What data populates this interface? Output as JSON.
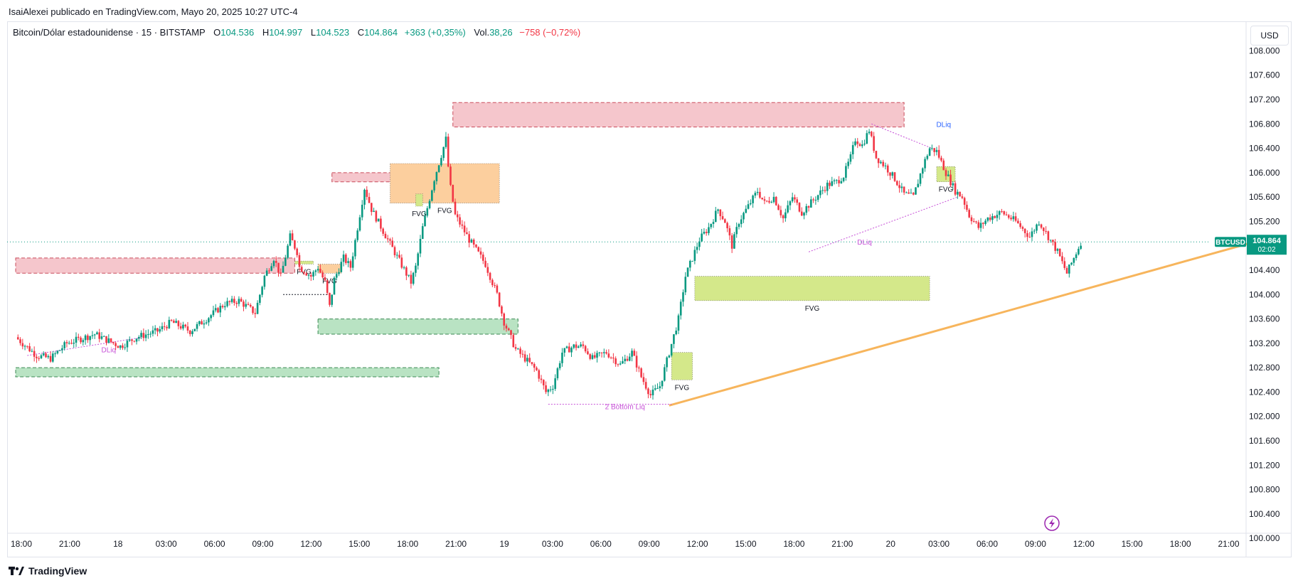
{
  "header": {
    "publisher_line": "IsaiAlexei publicado en TradingView.com, Mayo 20, 2025 10:27 UTC-4"
  },
  "legend": {
    "symbol": "Bitcoin/Dólar estadounidense · 15 · BITSTAMP",
    "open_label": "O",
    "open": "104.536",
    "high_label": "H",
    "high": "104.997",
    "low_label": "L",
    "low": "104.523",
    "close_label": "C",
    "close": "104.864",
    "change": "+363 (+0,35%)",
    "vol_label": "Vol.",
    "vol": "38,26",
    "vol_change": "−758 (−0,72%)"
  },
  "currency": "USD",
  "price_tag": {
    "symbol": "BTCUSD",
    "price": "104.864",
    "countdown": "02:02"
  },
  "footer": {
    "brand": "TradingView"
  },
  "colors": {
    "up": "#089981",
    "down": "#f23645",
    "trendline": "#f7b55c",
    "fvg_bull": "#d4e88a",
    "fvg_bear": "#fccf9e",
    "zone_red": "#f5c6cc",
    "zone_green": "#b9e3c3",
    "liq": "#c64fd7"
  },
  "chart_data": {
    "type": "candlestick",
    "title": "",
    "y_axis_ticks": [
      "108.000",
      "107.600",
      "107.200",
      "106.800",
      "106.400",
      "106.000",
      "105.600",
      "105.200",
      "104.800",
      "104.400",
      "104.000",
      "103.600",
      "103.200",
      "102.800",
      "102.400",
      "102.000",
      "101.600",
      "101.200",
      "100.800",
      "100.400",
      "100.000"
    ],
    "ylim": [
      99.85,
      108.25
    ],
    "x_axis_ticks": [
      "18:00",
      "21:00",
      "18",
      "03:00",
      "06:00",
      "09:00",
      "12:00",
      "15:00",
      "18:00",
      "21:00",
      "19",
      "03:00",
      "06:00",
      "09:00",
      "12:00",
      "15:00",
      "18:00",
      "21:00",
      "20",
      "03:00",
      "06:00",
      "09:00",
      "12:00",
      "15:00",
      "18:00",
      "21:00"
    ],
    "path": [
      [
        0,
        103.3
      ],
      [
        9,
        103.0
      ],
      [
        15,
        102.95
      ],
      [
        22,
        103.2
      ],
      [
        34,
        103.35
      ],
      [
        45,
        103.15
      ],
      [
        52,
        103.3
      ],
      [
        61,
        103.4
      ],
      [
        67,
        103.55
      ],
      [
        75,
        103.4
      ],
      [
        82,
        103.6
      ],
      [
        90,
        103.85
      ],
      [
        96,
        103.9
      ],
      [
        103,
        103.7
      ],
      [
        107,
        104.3
      ],
      [
        111,
        104.6
      ],
      [
        114,
        104.3
      ],
      [
        118,
        104.95
      ],
      [
        121,
        104.7
      ],
      [
        122,
        104.45
      ],
      [
        127,
        104.3
      ],
      [
        130,
        104.45
      ],
      [
        133,
        104.2
      ],
      [
        135,
        103.8
      ],
      [
        137,
        104.25
      ],
      [
        141,
        104.6
      ],
      [
        144,
        104.45
      ],
      [
        150,
        105.75
      ],
      [
        153,
        105.4
      ],
      [
        160,
        104.9
      ],
      [
        165,
        104.55
      ],
      [
        170,
        104.2
      ],
      [
        172,
        104.45
      ],
      [
        175,
        105.1
      ],
      [
        180,
        105.9
      ],
      [
        185,
        106.55
      ],
      [
        186,
        106.1
      ],
      [
        187,
        105.75
      ],
      [
        189,
        105.3
      ],
      [
        195,
        104.9
      ],
      [
        202,
        104.5
      ],
      [
        207,
        104.0
      ],
      [
        210,
        103.55
      ],
      [
        215,
        103.1
      ],
      [
        219,
        102.95
      ],
      [
        224,
        102.75
      ],
      [
        228,
        102.4
      ],
      [
        231,
        102.5
      ],
      [
        235,
        103.05
      ],
      [
        240,
        103.15
      ],
      [
        244,
        103.15
      ],
      [
        248,
        102.95
      ],
      [
        254,
        103.05
      ],
      [
        260,
        102.85
      ],
      [
        265,
        103.05
      ],
      [
        269,
        102.65
      ],
      [
        273,
        102.35
      ],
      [
        277,
        102.5
      ],
      [
        281,
        103.05
      ],
      [
        285,
        103.6
      ],
      [
        288,
        104.3
      ],
      [
        291,
        104.6
      ],
      [
        294,
        104.9
      ],
      [
        298,
        105.1
      ],
      [
        302,
        105.4
      ],
      [
        305,
        105.2
      ],
      [
        308,
        104.8
      ],
      [
        311,
        105.2
      ],
      [
        315,
        105.45
      ],
      [
        319,
        105.7
      ],
      [
        322,
        105.5
      ],
      [
        326,
        105.6
      ],
      [
        330,
        105.25
      ],
      [
        334,
        105.6
      ],
      [
        338,
        105.35
      ],
      [
        343,
        105.55
      ],
      [
        349,
        105.8
      ],
      [
        353,
        105.85
      ],
      [
        356,
        105.95
      ],
      [
        359,
        106.25
      ],
      [
        361,
        106.55
      ],
      [
        364,
        106.45
      ],
      [
        367,
        106.7
      ],
      [
        370,
        106.25
      ],
      [
        374,
        106.1
      ],
      [
        378,
        105.9
      ],
      [
        382,
        105.65
      ],
      [
        386,
        105.6
      ],
      [
        390,
        106.1
      ],
      [
        393,
        106.4
      ],
      [
        396,
        106.35
      ],
      [
        400,
        106.0
      ],
      [
        404,
        105.7
      ],
      [
        407,
        105.6
      ],
      [
        410,
        105.3
      ],
      [
        414,
        105.1
      ],
      [
        418,
        105.25
      ],
      [
        424,
        105.35
      ],
      [
        430,
        105.2
      ],
      [
        436,
        104.95
      ],
      [
        440,
        105.2
      ],
      [
        444,
        104.95
      ],
      [
        448,
        104.7
      ],
      [
        452,
        104.35
      ],
      [
        455,
        104.6
      ],
      [
        458,
        104.86
      ]
    ],
    "fvg_zones": [
      {
        "label": "FVG",
        "t1": 161,
        "t2": 208,
        "y1": 105.5,
        "y2": 106.15,
        "kind": "bearish"
      },
      {
        "label": "FVG",
        "t1": 292,
        "t2": 393,
        "y1": 103.9,
        "y2": 104.3,
        "kind": "bullish"
      },
      {
        "label": "FVG",
        "t1": 282,
        "t2": 291,
        "y1": 102.6,
        "y2": 103.05,
        "kind": "bullish"
      },
      {
        "label": "FVG",
        "t1": 130,
        "t2": 140,
        "y1": 104.35,
        "y2": 104.5,
        "kind": "bearish"
      },
      {
        "label": "FVG",
        "t1": 120,
        "t2": 128,
        "y1": 104.5,
        "y2": 104.55,
        "kind": "bullish"
      },
      {
        "label": "FVG",
        "t1": 396,
        "t2": 404,
        "y1": 105.85,
        "y2": 106.1,
        "kind": "bullish"
      },
      {
        "label": "FVG",
        "t1": 172,
        "t2": 175,
        "y1": 105.45,
        "y2": 105.65,
        "kind": "bullish"
      }
    ],
    "zones": [
      {
        "t1": 188,
        "t2": 382,
        "y1": 106.75,
        "y2": 107.15,
        "kind": "red"
      },
      {
        "t1": 136,
        "t2": 188,
        "y1": 105.85,
        "y2": 106.0,
        "kind": "red"
      },
      {
        "t1": 0,
        "t2": 120,
        "y1": 104.35,
        "y2": 104.6,
        "kind": "red"
      },
      {
        "t1": 130,
        "t2": 216,
        "y1": 103.35,
        "y2": 103.6,
        "kind": "green"
      },
      {
        "t1": 0,
        "t2": 182,
        "y1": 102.65,
        "y2": 102.8,
        "kind": "green"
      }
    ],
    "liq_labels": [
      {
        "text": "DLiq",
        "t": 40,
        "y": 103.05
      },
      {
        "text": "2 Bottom Liq",
        "t": 262,
        "y": 102.12
      },
      {
        "text": "DLiq",
        "t": 365,
        "y": 104.82
      },
      {
        "text": "DLiq",
        "t": 399,
        "y": 106.75
      }
    ],
    "trendline": {
      "t1": 281,
      "y1": 102.18,
      "t2": 536,
      "y2": 104.9
    }
  }
}
